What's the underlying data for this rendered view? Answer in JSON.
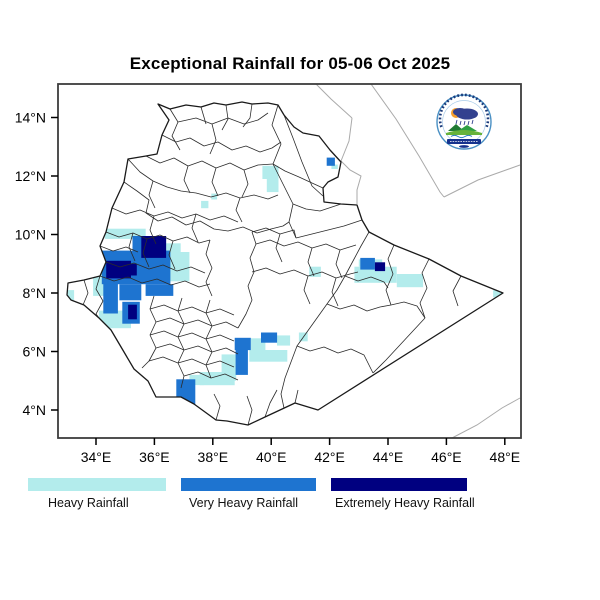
{
  "title": "Exceptional Rainfall for 05-06 Oct 2025",
  "axes": {
    "x_tick_labels": [
      "34°E",
      "36°E",
      "38°E",
      "40°E",
      "42°E",
      "44°E",
      "46°E",
      "48°E"
    ],
    "y_tick_labels": [
      "14°N",
      "12°N",
      "10°N",
      "8°N",
      "6°N",
      "4°N"
    ],
    "x_range_deg": [
      32.7,
      48.6
    ],
    "y_range_deg": [
      3.0,
      15.2
    ]
  },
  "legend": [
    {
      "label": "Heavy Rainfall",
      "level": "heavy",
      "color": "#b3ecec"
    },
    {
      "label": "Very Heavy Rainfall",
      "level": "very_heavy",
      "color": "#1e74d0"
    },
    {
      "label": "Extremely Heavy Rainfall",
      "level": "extremely_heavy",
      "color": "#000080"
    }
  ],
  "map": {
    "rainfall_cells": [
      {
        "lon": 34.3,
        "lat": 9.85,
        "w": 1.4,
        "h": 0.35,
        "level": "heavy"
      },
      {
        "lon": 33.9,
        "lat": 7.9,
        "w": 0.45,
        "h": 1.2,
        "level": "heavy"
      },
      {
        "lon": 36.5,
        "lat": 8.4,
        "w": 0.7,
        "h": 1.0,
        "level": "heavy"
      },
      {
        "lon": 36.4,
        "lat": 9.2,
        "w": 0.5,
        "h": 0.5,
        "level": "heavy"
      },
      {
        "lon": 34.1,
        "lat": 6.8,
        "w": 1.1,
        "h": 0.6,
        "level": "heavy"
      },
      {
        "lon": 32.95,
        "lat": 7.75,
        "w": 0.3,
        "h": 0.35,
        "level": "heavy"
      },
      {
        "lon": 42.85,
        "lat": 8.35,
        "w": 1.45,
        "h": 0.55,
        "level": "heavy"
      },
      {
        "lon": 44.3,
        "lat": 8.2,
        "w": 0.9,
        "h": 0.45,
        "level": "heavy"
      },
      {
        "lon": 43.0,
        "lat": 8.9,
        "w": 0.8,
        "h": 0.25,
        "level": "heavy"
      },
      {
        "lon": 38.3,
        "lat": 5.0,
        "w": 0.5,
        "h": 0.9,
        "level": "heavy"
      },
      {
        "lon": 37.55,
        "lat": 4.85,
        "w": 1.2,
        "h": 0.45,
        "level": "heavy"
      },
      {
        "lon": 39.3,
        "lat": 6.05,
        "w": 0.5,
        "h": 0.4,
        "level": "heavy"
      },
      {
        "lon": 40.2,
        "lat": 6.2,
        "w": 0.45,
        "h": 0.35,
        "level": "heavy"
      },
      {
        "lon": 40.95,
        "lat": 6.35,
        "w": 0.3,
        "h": 0.3,
        "level": "heavy"
      },
      {
        "lon": 39.25,
        "lat": 5.65,
        "w": 1.3,
        "h": 0.4,
        "level": "heavy"
      },
      {
        "lon": 37.2,
        "lat": 4.85,
        "w": 0.5,
        "h": 0.35,
        "level": "heavy"
      },
      {
        "lon": 39.7,
        "lat": 11.9,
        "w": 0.55,
        "h": 0.45,
        "level": "heavy"
      },
      {
        "lon": 39.85,
        "lat": 11.45,
        "w": 0.4,
        "h": 0.5,
        "level": "heavy"
      },
      {
        "lon": 37.6,
        "lat": 10.9,
        "w": 0.25,
        "h": 0.25,
        "level": "heavy"
      },
      {
        "lon": 37.95,
        "lat": 11.2,
        "w": 0.2,
        "h": 0.2,
        "level": "heavy"
      },
      {
        "lon": 42.06,
        "lat": 12.24,
        "w": 0.22,
        "h": 0.15,
        "level": "heavy"
      },
      {
        "lon": 41.3,
        "lat": 8.55,
        "w": 0.4,
        "h": 0.35,
        "level": "heavy"
      },
      {
        "lon": 47.6,
        "lat": 7.85,
        "w": 0.35,
        "h": 0.25,
        "level": "heavy"
      },
      {
        "lon": 46.0,
        "lat": 6.05,
        "w": 0.3,
        "h": 0.3,
        "level": "heavy"
      },
      {
        "lon": 34.2,
        "lat": 8.3,
        "w": 2.35,
        "h": 1.15,
        "level": "very_heavy"
      },
      {
        "lon": 35.25,
        "lat": 9.3,
        "w": 1.15,
        "h": 0.65,
        "level": "very_heavy"
      },
      {
        "lon": 34.25,
        "lat": 7.3,
        "w": 0.5,
        "h": 1.1,
        "level": "very_heavy"
      },
      {
        "lon": 35.7,
        "lat": 7.9,
        "w": 0.95,
        "h": 0.4,
        "level": "very_heavy"
      },
      {
        "lon": 34.8,
        "lat": 7.75,
        "w": 0.75,
        "h": 0.55,
        "level": "very_heavy"
      },
      {
        "lon": 34.9,
        "lat": 6.95,
        "w": 0.6,
        "h": 0.75,
        "level": "very_heavy"
      },
      {
        "lon": 38.75,
        "lat": 6.05,
        "w": 0.55,
        "h": 0.42,
        "level": "very_heavy"
      },
      {
        "lon": 39.65,
        "lat": 6.3,
        "w": 0.55,
        "h": 0.35,
        "level": "very_heavy"
      },
      {
        "lon": 38.78,
        "lat": 5.2,
        "w": 0.42,
        "h": 0.95,
        "level": "very_heavy"
      },
      {
        "lon": 36.75,
        "lat": 4.15,
        "w": 0.65,
        "h": 0.9,
        "level": "very_heavy"
      },
      {
        "lon": 43.05,
        "lat": 8.8,
        "w": 0.5,
        "h": 0.4,
        "level": "very_heavy"
      },
      {
        "lon": 41.9,
        "lat": 12.35,
        "w": 0.28,
        "h": 0.28,
        "level": "very_heavy"
      },
      {
        "lon": 35.55,
        "lat": 9.2,
        "w": 0.85,
        "h": 0.75,
        "level": "extremely_heavy"
      },
      {
        "lon": 34.35,
        "lat": 8.5,
        "w": 0.85,
        "h": 0.6,
        "level": "extremely_heavy"
      },
      {
        "lon": 34.95,
        "lat": 8.6,
        "w": 0.45,
        "h": 0.4,
        "level": "extremely_heavy"
      },
      {
        "lon": 35.1,
        "lat": 7.1,
        "w": 0.3,
        "h": 0.5,
        "level": "extremely_heavy"
      },
      {
        "lon": 43.55,
        "lat": 8.75,
        "w": 0.35,
        "h": 0.3,
        "level": "extremely_heavy"
      }
    ]
  }
}
